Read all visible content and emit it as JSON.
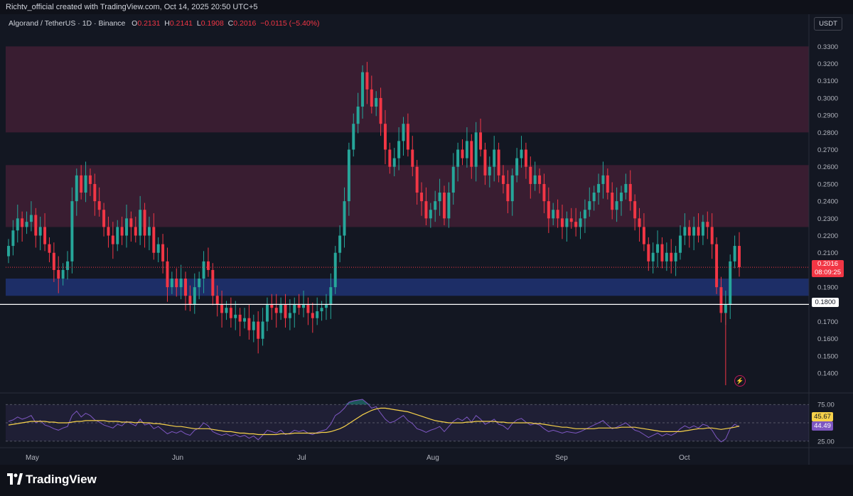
{
  "header": {
    "credit": "Richtv_official created with TradingView.com, Oct 14, 2025 20:50 UTC+5"
  },
  "legend": {
    "symbol": "Algorand / TetherUS · 1D · Binance",
    "open_label": "O",
    "open": "0.2131",
    "high_label": "H",
    "high": "0.2141",
    "low_label": "L",
    "low": "0.1908",
    "close_label": "C",
    "close": "0.2016",
    "change": "−0.0115 (−5.40%)"
  },
  "currency": "USDT",
  "price_tag": {
    "price": "0.2016",
    "countdown": "08:09:25"
  },
  "line_tag": "0.1800",
  "rsi_tags": {
    "ma": "45.67",
    "rsi": "44.49"
  },
  "footer": {
    "brand": "TradingView"
  },
  "colors": {
    "up": "#26a69a",
    "down": "#f23645",
    "zone_red": "#3b1d33",
    "zone_blue": "#1e2f6b",
    "rsi": "#7e57c2",
    "rsi_ma": "#f7d24a",
    "bg": "#131722"
  },
  "icons": {
    "alert": "lightning-bolt-icon",
    "brand": "tradingview-logo-icon"
  },
  "chart_data": {
    "type": "candlestick",
    "price_axis": {
      "ticks": [
        "0.3300",
        "0.3200",
        "0.3100",
        "0.3000",
        "0.2900",
        "0.2800",
        "0.2700",
        "0.2600",
        "0.2500",
        "0.2400",
        "0.2300",
        "0.2200",
        "0.2100",
        "0.1900",
        "0.1700",
        "0.1600",
        "0.1500",
        "0.1400"
      ],
      "range": [
        0.1318,
        0.3355
      ]
    },
    "time_axis": {
      "ticks": [
        "May",
        "Jun",
        "Jul",
        "Aug",
        "Sep",
        "Oct"
      ]
    },
    "zones": [
      {
        "from": 0.28,
        "to": 0.33,
        "color": "red"
      },
      {
        "from": 0.225,
        "to": 0.261,
        "color": "red"
      },
      {
        "from": 0.185,
        "to": 0.195,
        "color": "blue"
      }
    ],
    "horizontal_line": 0.18,
    "last_price": 0.2016,
    "closes": [
      0.214,
      0.223,
      0.23,
      0.225,
      0.228,
      0.232,
      0.22,
      0.225,
      0.215,
      0.21,
      0.2,
      0.195,
      0.2,
      0.205,
      0.24,
      0.255,
      0.245,
      0.255,
      0.25,
      0.24,
      0.235,
      0.225,
      0.22,
      0.215,
      0.225,
      0.22,
      0.23,
      0.225,
      0.22,
      0.235,
      0.22,
      0.225,
      0.21,
      0.215,
      0.205,
      0.19,
      0.195,
      0.19,
      0.195,
      0.185,
      0.18,
      0.19,
      0.195,
      0.205,
      0.2,
      0.185,
      0.18,
      0.175,
      0.178,
      0.172,
      0.174,
      0.17,
      0.172,
      0.165,
      0.17,
      0.16,
      0.17,
      0.18,
      0.178,
      0.175,
      0.18,
      0.172,
      0.175,
      0.18,
      0.178,
      0.18,
      0.175,
      0.172,
      0.176,
      0.178,
      0.18,
      0.19,
      0.21,
      0.22,
      0.24,
      0.27,
      0.285,
      0.295,
      0.315,
      0.305,
      0.295,
      0.3,
      0.285,
      0.27,
      0.26,
      0.265,
      0.275,
      0.285,
      0.27,
      0.26,
      0.245,
      0.24,
      0.23,
      0.235,
      0.24,
      0.245,
      0.23,
      0.245,
      0.26,
      0.27,
      0.265,
      0.275,
      0.26,
      0.28,
      0.27,
      0.255,
      0.26,
      0.27,
      0.255,
      0.25,
      0.24,
      0.255,
      0.265,
      0.27,
      0.26,
      0.25,
      0.255,
      0.25,
      0.24,
      0.23,
      0.235,
      0.23,
      0.225,
      0.23,
      0.228,
      0.225,
      0.23,
      0.235,
      0.24,
      0.245,
      0.25,
      0.255,
      0.245,
      0.235,
      0.24,
      0.245,
      0.25,
      0.24,
      0.23,
      0.225,
      0.215,
      0.205,
      0.21,
      0.215,
      0.205,
      0.21,
      0.205,
      0.21,
      0.22,
      0.225,
      0.22,
      0.225,
      0.22,
      0.228,
      0.225,
      0.215,
      0.19,
      0.175,
      0.18,
      0.205,
      0.214,
      0.2016
    ],
    "rsi": {
      "levels": [
        75.0,
        25.0
      ],
      "range": [
        20,
        82
      ],
      "rsi_last": 44.49,
      "ma_last": 45.67,
      "rsi_values": [
        52,
        54,
        58,
        55,
        57,
        60,
        50,
        53,
        47,
        45,
        42,
        40,
        43,
        45,
        60,
        66,
        58,
        63,
        60,
        54,
        51,
        47,
        45,
        43,
        48,
        46,
        52,
        49,
        46,
        55,
        47,
        49,
        42,
        45,
        40,
        35,
        38,
        36,
        39,
        35,
        33,
        40,
        43,
        50,
        46,
        38,
        35,
        33,
        35,
        32,
        34,
        31,
        33,
        29,
        32,
        27,
        33,
        40,
        38,
        36,
        40,
        34,
        36,
        40,
        38,
        40,
        36,
        34,
        37,
        39,
        41,
        48,
        60,
        64,
        70,
        78,
        80,
        81,
        82,
        77,
        70,
        72,
        63,
        55,
        50,
        52,
        56,
        60,
        53,
        49,
        42,
        40,
        37,
        40,
        42,
        45,
        38,
        45,
        52,
        56,
        53,
        58,
        51,
        60,
        55,
        48,
        51,
        55,
        48,
        46,
        41,
        49,
        54,
        56,
        51,
        47,
        49,
        47,
        42,
        38,
        40,
        38,
        36,
        38,
        37,
        36,
        38,
        41,
        44,
        47,
        50,
        53,
        47,
        42,
        44,
        47,
        50,
        45,
        40,
        38,
        34,
        30,
        33,
        36,
        32,
        35,
        33,
        36,
        42,
        46,
        43,
        46,
        43,
        48,
        46,
        40,
        30,
        24,
        28,
        42,
        48,
        44.49
      ],
      "ma_values": [
        47,
        48,
        49,
        50,
        51,
        52,
        52,
        52,
        52,
        51,
        51,
        50,
        50,
        50,
        51,
        52,
        52,
        53,
        53,
        53,
        53,
        53,
        52,
        52,
        52,
        51,
        51,
        51,
        50,
        51,
        50,
        50,
        49,
        49,
        48,
        47,
        46,
        45,
        45,
        44,
        43,
        42,
        42,
        42,
        42,
        41,
        40,
        39,
        38,
        38,
        37,
        36,
        36,
        35,
        35,
        34,
        34,
        34,
        34,
        34,
        35,
        35,
        35,
        36,
        36,
        36,
        36,
        36,
        36,
        37,
        37,
        38,
        40,
        42,
        45,
        49,
        53,
        57,
        61,
        64,
        67,
        69,
        70,
        70,
        69,
        68,
        67,
        66,
        65,
        63,
        61,
        59,
        57,
        55,
        53,
        52,
        51,
        50,
        50,
        50,
        50,
        51,
        51,
        52,
        52,
        52,
        52,
        52,
        51,
        51,
        50,
        50,
        50,
        50,
        50,
        50,
        49,
        49,
        48,
        47,
        46,
        45,
        44,
        44,
        43,
        42,
        42,
        42,
        42,
        42,
        43,
        43,
        43,
        43,
        43,
        44,
        44,
        44,
        44,
        43,
        42,
        41,
        40,
        39,
        38,
        38,
        38,
        38,
        38,
        39,
        40,
        41,
        42,
        42,
        43,
        43,
        42,
        41,
        42,
        43,
        44,
        45.67
      ]
    }
  }
}
